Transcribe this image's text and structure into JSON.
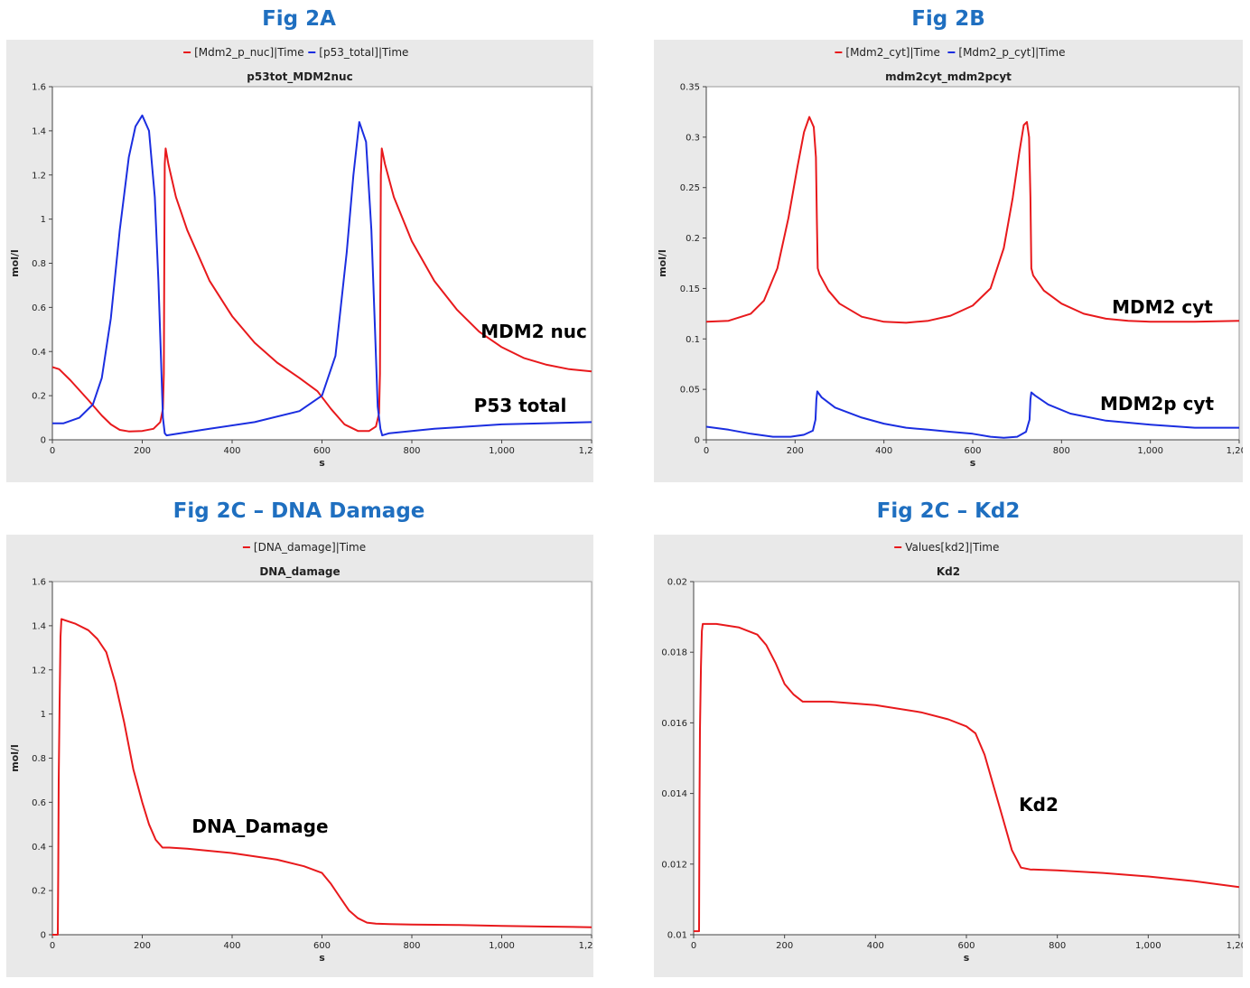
{
  "figure_titles": [
    "Fig 2A",
    "Fig 2B",
    "Fig 2C – DNA Damage",
    "Fig 2C – Kd2"
  ],
  "chart_data": [
    {
      "type": "line",
      "title": "p53tot_MDM2nuc",
      "xlabel": "s",
      "ylabel": "mol/l",
      "xlim": [
        0,
        1200
      ],
      "ylim": [
        0,
        1.6
      ],
      "xticks": [
        0,
        200,
        400,
        600,
        800,
        1000,
        1200
      ],
      "xtick_labels": [
        "0",
        "200",
        "400",
        "600",
        "800",
        "1,000",
        "1,200"
      ],
      "yticks": [
        0,
        0.2,
        0.4,
        0.6,
        0.8,
        1,
        1.2,
        1.4,
        1.6
      ],
      "ytick_labels": [
        "0",
        "0.2",
        "0.4",
        "0.6",
        "0.8",
        "1",
        "1.2",
        "1.4",
        "1.6"
      ],
      "legend_position": "top-center",
      "series": [
        {
          "name": "[Mdm2_p_nuc]|Time",
          "color": "#e8191c",
          "x": [
            0,
            15,
            40,
            80,
            110,
            130,
            150,
            170,
            200,
            225,
            240,
            246,
            248,
            249,
            250,
            252,
            258,
            275,
            300,
            350,
            400,
            450,
            500,
            550,
            590,
            620,
            650,
            680,
            705,
            720,
            727,
            729,
            730,
            731,
            733,
            740,
            760,
            800,
            850,
            900,
            950,
            1000,
            1050,
            1100,
            1150,
            1200
          ],
          "y": [
            0.33,
            0.32,
            0.27,
            0.18,
            0.11,
            0.07,
            0.045,
            0.038,
            0.04,
            0.05,
            0.08,
            0.14,
            0.3,
            0.8,
            1.25,
            1.32,
            1.25,
            1.1,
            0.95,
            0.72,
            0.56,
            0.44,
            0.35,
            0.28,
            0.22,
            0.14,
            0.07,
            0.04,
            0.04,
            0.06,
            0.12,
            0.3,
            0.8,
            1.2,
            1.32,
            1.25,
            1.1,
            0.9,
            0.72,
            0.59,
            0.49,
            0.42,
            0.37,
            0.34,
            0.32,
            0.31
          ]
        },
        {
          "name": "[p53_total]|Time",
          "color": "#1b2ee0",
          "x": [
            0,
            25,
            60,
            90,
            110,
            130,
            150,
            170,
            185,
            200,
            215,
            228,
            236,
            242,
            246,
            250,
            254,
            270,
            350,
            450,
            550,
            600,
            630,
            655,
            670,
            683,
            698,
            710,
            718,
            724,
            730,
            734,
            750,
            850,
            1000,
            1200
          ],
          "y": [
            0.075,
            0.075,
            0.1,
            0.16,
            0.28,
            0.55,
            0.95,
            1.28,
            1.42,
            1.47,
            1.4,
            1.1,
            0.72,
            0.35,
            0.1,
            0.03,
            0.02,
            0.025,
            0.05,
            0.08,
            0.13,
            0.2,
            0.38,
            0.85,
            1.2,
            1.44,
            1.35,
            0.95,
            0.5,
            0.15,
            0.05,
            0.02,
            0.03,
            0.05,
            0.07,
            0.08
          ]
        }
      ],
      "annotations": [
        "MDM2 nuc",
        "P53 total"
      ]
    },
    {
      "type": "line",
      "title": "mdm2cyt_mdm2pcyt",
      "xlabel": "s",
      "ylabel": "mol/l",
      "xlim": [
        0,
        1200
      ],
      "ylim": [
        0,
        0.35
      ],
      "xticks": [
        0,
        200,
        400,
        600,
        800,
        1000,
        1200
      ],
      "xtick_labels": [
        "0",
        "200",
        "400",
        "600",
        "800",
        "1,000",
        "1,200"
      ],
      "yticks": [
        0,
        0.05,
        0.1,
        0.15,
        0.2,
        0.25,
        0.3,
        0.35
      ],
      "ytick_labels": [
        "0",
        "0.05",
        "0.1",
        "0.15",
        "0.2",
        "0.25",
        "0.3",
        "0.35"
      ],
      "legend_position": "top-center",
      "series": [
        {
          "name": "[Mdm2_cyt]|Time",
          "color": "#e8191c",
          "x": [
            0,
            50,
            100,
            130,
            160,
            185,
            205,
            220,
            232,
            242,
            247,
            249,
            251,
            255,
            275,
            300,
            350,
            400,
            450,
            500,
            550,
            600,
            640,
            670,
            690,
            705,
            715,
            722,
            727,
            730,
            732,
            736,
            760,
            800,
            850,
            900,
            950,
            1000,
            1100,
            1200
          ],
          "y": [
            0.117,
            0.118,
            0.125,
            0.138,
            0.17,
            0.22,
            0.27,
            0.305,
            0.32,
            0.31,
            0.28,
            0.22,
            0.17,
            0.164,
            0.148,
            0.135,
            0.122,
            0.117,
            0.116,
            0.118,
            0.123,
            0.133,
            0.15,
            0.19,
            0.24,
            0.285,
            0.312,
            0.315,
            0.3,
            0.24,
            0.17,
            0.163,
            0.148,
            0.135,
            0.125,
            0.12,
            0.118,
            0.117,
            0.117,
            0.118
          ]
        },
        {
          "name": "[Mdm2_p_cyt]|Time",
          "color": "#1b2ee0",
          "x": [
            0,
            50,
            100,
            150,
            190,
            220,
            240,
            246,
            248,
            250,
            260,
            290,
            350,
            400,
            450,
            500,
            550,
            600,
            640,
            670,
            700,
            720,
            728,
            730,
            732,
            740,
            770,
            820,
            900,
            1000,
            1100,
            1200
          ],
          "y": [
            0.013,
            0.01,
            0.006,
            0.003,
            0.003,
            0.005,
            0.009,
            0.02,
            0.04,
            0.048,
            0.042,
            0.032,
            0.022,
            0.016,
            0.012,
            0.01,
            0.008,
            0.006,
            0.003,
            0.002,
            0.003,
            0.008,
            0.02,
            0.04,
            0.047,
            0.044,
            0.035,
            0.026,
            0.019,
            0.015,
            0.012,
            0.012
          ]
        }
      ],
      "annotations": [
        "MDM2 cyt",
        "MDM2p cyt"
      ]
    },
    {
      "type": "line",
      "title": "DNA_damage",
      "xlabel": "s",
      "ylabel": "mol/l",
      "xlim": [
        0,
        1200
      ],
      "ylim": [
        0,
        1.6
      ],
      "xticks": [
        0,
        200,
        400,
        600,
        800,
        1000,
        1200
      ],
      "xtick_labels": [
        "0",
        "200",
        "400",
        "600",
        "800",
        "1,000",
        "1,200"
      ],
      "yticks": [
        0,
        0.2,
        0.4,
        0.6,
        0.8,
        1,
        1.2,
        1.4,
        1.6
      ],
      "ytick_labels": [
        "0",
        "0.2",
        "0.4",
        "0.6",
        "0.8",
        "1",
        "1.2",
        "1.4",
        "1.6"
      ],
      "legend_position": "top-center",
      "series": [
        {
          "name": "[DNA_damage]|Time",
          "color": "#e8191c",
          "x": [
            0,
            12,
            13,
            14,
            16,
            18,
            20,
            50,
            80,
            100,
            120,
            140,
            160,
            180,
            200,
            215,
            230,
            245,
            260,
            300,
            400,
            500,
            560,
            600,
            620,
            640,
            660,
            680,
            700,
            720,
            750,
            800,
            900,
            1000,
            1100,
            1200
          ],
          "y": [
            0.0,
            0.0,
            0.3,
            0.7,
            1.05,
            1.35,
            1.43,
            1.41,
            1.38,
            1.34,
            1.28,
            1.14,
            0.96,
            0.75,
            0.6,
            0.5,
            0.43,
            0.395,
            0.395,
            0.39,
            0.37,
            0.34,
            0.31,
            0.28,
            0.23,
            0.17,
            0.11,
            0.075,
            0.055,
            0.05,
            0.048,
            0.046,
            0.044,
            0.04,
            0.037,
            0.034
          ]
        }
      ],
      "annotations": [
        "DNA_Damage"
      ]
    },
    {
      "type": "line",
      "title": "Kd2",
      "xlabel": "s",
      "ylabel": "",
      "xlim": [
        0,
        1200
      ],
      "ylim": [
        0.01,
        0.02
      ],
      "xticks": [
        0,
        200,
        400,
        600,
        800,
        1000,
        1200
      ],
      "xtick_labels": [
        "0",
        "200",
        "400",
        "600",
        "800",
        "1,000",
        "1,200"
      ],
      "yticks": [
        0.01,
        0.012,
        0.014,
        0.016,
        0.018,
        0.02
      ],
      "ytick_labels": [
        "0.01",
        "0.012",
        "0.014",
        "0.016",
        "0.018",
        "0.02"
      ],
      "legend_position": "top-center",
      "series": [
        {
          "name": "Values[kd2]|Time",
          "color": "#e8191c",
          "x": [
            0,
            12,
            13,
            14,
            16,
            18,
            20,
            50,
            100,
            140,
            160,
            180,
            200,
            220,
            240,
            260,
            300,
            400,
            500,
            560,
            600,
            620,
            640,
            660,
            680,
            700,
            720,
            740,
            800,
            900,
            1000,
            1100,
            1200
          ],
          "y": [
            0.0101,
            0.0101,
            0.0138,
            0.0158,
            0.0176,
            0.0186,
            0.0188,
            0.0188,
            0.0187,
            0.0185,
            0.0182,
            0.0177,
            0.0171,
            0.0168,
            0.0166,
            0.0166,
            0.0166,
            0.0165,
            0.0163,
            0.0161,
            0.0159,
            0.0157,
            0.0151,
            0.0142,
            0.0133,
            0.0124,
            0.0119,
            0.01185,
            0.01182,
            0.01175,
            0.01165,
            0.01152,
            0.01135
          ]
        }
      ],
      "annotations": [
        "Kd2"
      ]
    }
  ]
}
